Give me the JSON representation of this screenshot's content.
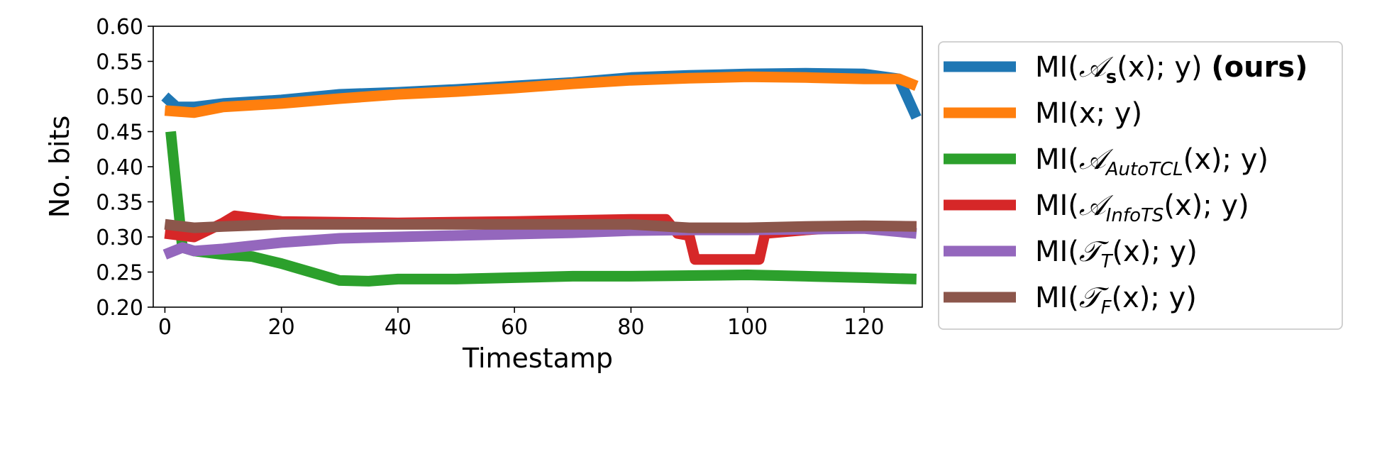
{
  "chart_data": {
    "type": "line",
    "xlabel": "Timestamp",
    "ylabel": "No. bits",
    "xlim": [
      -2,
      130
    ],
    "ylim": [
      0.2,
      0.6
    ],
    "xticks": [
      0,
      20,
      40,
      60,
      80,
      100,
      120
    ],
    "xtick_labels": [
      "0",
      "20",
      "40",
      "60",
      "80",
      "100",
      "120"
    ],
    "yticks": [
      0.2,
      0.25,
      0.3,
      0.35,
      0.4,
      0.45,
      0.5,
      0.55,
      0.6
    ],
    "ytick_labels": [
      "0.20",
      "0.25",
      "0.30",
      "0.35",
      "0.40",
      "0.45",
      "0.50",
      "0.55",
      "0.60"
    ],
    "grid": false,
    "legend_position": "outside-right",
    "series": [
      {
        "id": "as",
        "color": "#1f77b4",
        "label": {
          "pre": "MI(",
          "script": "𝒜",
          "sub": "s",
          "sub_bold": true,
          "post": "(x); y) ",
          "bold": "(ours)"
        },
        "points": [
          [
            0,
            0.5
          ],
          [
            2,
            0.485
          ],
          [
            5,
            0.485
          ],
          [
            10,
            0.49
          ],
          [
            20,
            0.495
          ],
          [
            30,
            0.503
          ],
          [
            40,
            0.506
          ],
          [
            50,
            0.51
          ],
          [
            60,
            0.515
          ],
          [
            70,
            0.52
          ],
          [
            80,
            0.527
          ],
          [
            90,
            0.53
          ],
          [
            100,
            0.532
          ],
          [
            110,
            0.533
          ],
          [
            120,
            0.532
          ],
          [
            126,
            0.525
          ],
          [
            129,
            0.47
          ]
        ]
      },
      {
        "id": "xy",
        "color": "#ff7f0e",
        "label": {
          "pre": "MI(",
          "script": "",
          "sub": "",
          "post": "x; y)",
          "bold": ""
        },
        "points": [
          [
            0,
            0.48
          ],
          [
            5,
            0.477
          ],
          [
            10,
            0.485
          ],
          [
            20,
            0.49
          ],
          [
            30,
            0.497
          ],
          [
            40,
            0.503
          ],
          [
            50,
            0.507
          ],
          [
            60,
            0.512
          ],
          [
            70,
            0.518
          ],
          [
            80,
            0.523
          ],
          [
            90,
            0.526
          ],
          [
            100,
            0.528
          ],
          [
            110,
            0.527
          ],
          [
            120,
            0.525
          ],
          [
            126,
            0.525
          ],
          [
            129,
            0.515
          ]
        ]
      },
      {
        "id": "autotcl",
        "color": "#2ca02c",
        "label": {
          "pre": "MI(",
          "script": "𝒜",
          "sub": "AutoTCL",
          "post": "(x); y)",
          "bold": ""
        },
        "points": [
          [
            1,
            0.45
          ],
          [
            3,
            0.285
          ],
          [
            5,
            0.28
          ],
          [
            10,
            0.275
          ],
          [
            15,
            0.272
          ],
          [
            20,
            0.262
          ],
          [
            25,
            0.25
          ],
          [
            30,
            0.238
          ],
          [
            35,
            0.237
          ],
          [
            40,
            0.24
          ],
          [
            50,
            0.24
          ],
          [
            60,
            0.242
          ],
          [
            70,
            0.244
          ],
          [
            80,
            0.244
          ],
          [
            90,
            0.245
          ],
          [
            100,
            0.246
          ],
          [
            110,
            0.244
          ],
          [
            120,
            0.242
          ],
          [
            129,
            0.24
          ]
        ]
      },
      {
        "id": "infots",
        "color": "#d62728",
        "label": {
          "pre": "MI(",
          "script": "𝒜",
          "sub": "InfoTS",
          "post": "(x); y)",
          "bold": ""
        },
        "points": [
          [
            0,
            0.305
          ],
          [
            5,
            0.3
          ],
          [
            10,
            0.32
          ],
          [
            12,
            0.33
          ],
          [
            20,
            0.322
          ],
          [
            40,
            0.32
          ],
          [
            60,
            0.322
          ],
          [
            80,
            0.325
          ],
          [
            86,
            0.325
          ],
          [
            88,
            0.305
          ],
          [
            90,
            0.302
          ],
          [
            91,
            0.268
          ],
          [
            100,
            0.268
          ],
          [
            102,
            0.268
          ],
          [
            103,
            0.305
          ],
          [
            110,
            0.31
          ],
          [
            120,
            0.315
          ],
          [
            129,
            0.315
          ]
        ]
      },
      {
        "id": "tt",
        "color": "#9467bd",
        "label": {
          "pre": "MI(",
          "script": "𝒯",
          "sub": "T",
          "post": "(x); y)",
          "bold": ""
        },
        "points": [
          [
            0,
            0.275
          ],
          [
            3,
            0.285
          ],
          [
            5,
            0.28
          ],
          [
            10,
            0.283
          ],
          [
            20,
            0.292
          ],
          [
            25,
            0.295
          ],
          [
            30,
            0.298
          ],
          [
            40,
            0.3
          ],
          [
            50,
            0.302
          ],
          [
            60,
            0.304
          ],
          [
            70,
            0.306
          ],
          [
            80,
            0.309
          ],
          [
            90,
            0.31
          ],
          [
            100,
            0.31
          ],
          [
            110,
            0.311
          ],
          [
            120,
            0.312
          ],
          [
            129,
            0.305
          ]
        ]
      },
      {
        "id": "tf",
        "color": "#8c564b",
        "label": {
          "pre": "MI(",
          "script": "𝒯",
          "sub": "F",
          "post": "(x); y)",
          "bold": ""
        },
        "points": [
          [
            0,
            0.318
          ],
          [
            5,
            0.313
          ],
          [
            10,
            0.315
          ],
          [
            20,
            0.318
          ],
          [
            40,
            0.318
          ],
          [
            60,
            0.318
          ],
          [
            80,
            0.318
          ],
          [
            90,
            0.313
          ],
          [
            100,
            0.313
          ],
          [
            110,
            0.315
          ],
          [
            120,
            0.316
          ],
          [
            129,
            0.315
          ]
        ]
      }
    ]
  }
}
